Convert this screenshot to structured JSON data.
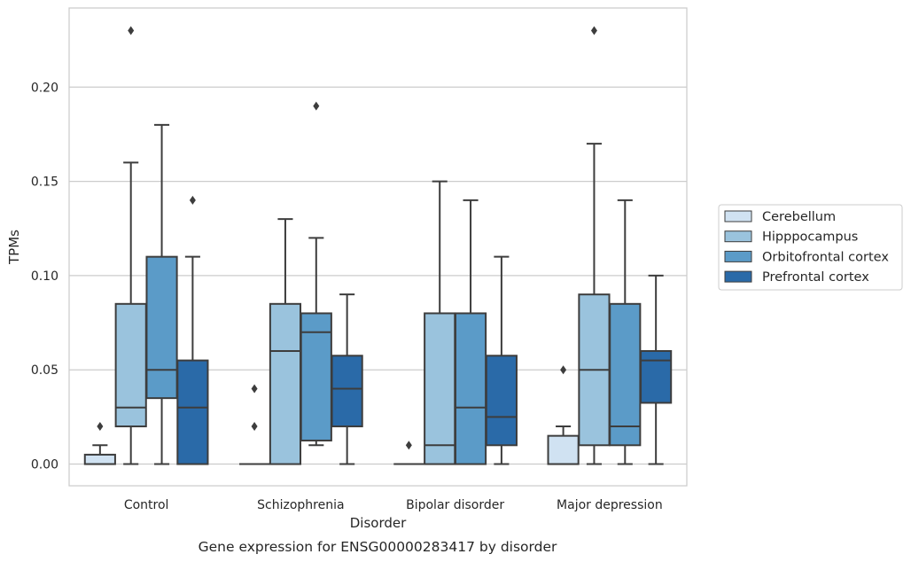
{
  "chart_data": {
    "type": "box",
    "caption": "Gene expression for ENSG00000283417 by disorder",
    "xlabel": "Disorder",
    "ylabel": "TPMs",
    "ylim": [
      -0.0115,
      0.242
    ],
    "yticks": [
      0.0,
      0.05,
      0.1,
      0.15,
      0.2
    ],
    "ytick_labels": [
      "0.00",
      "0.05",
      "0.10",
      "0.15",
      "0.20"
    ],
    "grid": "horizontal",
    "legend_position": "right",
    "categories": [
      "Control",
      "Schizophrenia",
      "Bipolar disorder",
      "Major depression"
    ],
    "series": [
      {
        "name": "Cerebellum",
        "color": "#d0e2f2",
        "boxes": [
          {
            "whislo": 0.0,
            "q1": 0.0,
            "med": 0.0,
            "q3": 0.005,
            "whishi": 0.01,
            "fliers": [
              0.02
            ]
          },
          {
            "whislo": 0.0,
            "q1": 0.0,
            "med": 0.0,
            "q3": 0.0,
            "whishi": 0.0,
            "fliers": [
              0.02,
              0.04
            ]
          },
          {
            "whislo": 0.0,
            "q1": 0.0,
            "med": 0.0,
            "q3": 0.0,
            "whishi": 0.0,
            "fliers": [
              0.01
            ]
          },
          {
            "whislo": 0.0,
            "q1": 0.0,
            "med": 0.0,
            "q3": 0.015,
            "whishi": 0.02,
            "fliers": [
              0.05
            ]
          }
        ]
      },
      {
        "name": "Hipppocampus",
        "color": "#9ac3dd",
        "boxes": [
          {
            "whislo": 0.0,
            "q1": 0.02,
            "med": 0.03,
            "q3": 0.085,
            "whishi": 0.16,
            "fliers": [
              0.23
            ]
          },
          {
            "whislo": 0.0,
            "q1": 0.0,
            "med": 0.06,
            "q3": 0.085,
            "whishi": 0.13,
            "fliers": []
          },
          {
            "whislo": 0.0,
            "q1": 0.0,
            "med": 0.01,
            "q3": 0.08,
            "whishi": 0.15,
            "fliers": []
          },
          {
            "whislo": 0.0,
            "q1": 0.01,
            "med": 0.05,
            "q3": 0.09,
            "whishi": 0.17,
            "fliers": [
              0.23
            ]
          }
        ]
      },
      {
        "name": "Orbitofrontal cortex",
        "color": "#5b9bc8",
        "boxes": [
          {
            "whislo": 0.0,
            "q1": 0.035,
            "med": 0.05,
            "q3": 0.11,
            "whishi": 0.18,
            "fliers": []
          },
          {
            "whislo": 0.01,
            "q1": 0.0125,
            "med": 0.07,
            "q3": 0.08,
            "whishi": 0.12,
            "fliers": [
              0.19
            ]
          },
          {
            "whislo": 0.0,
            "q1": 0.0,
            "med": 0.03,
            "q3": 0.08,
            "whishi": 0.14,
            "fliers": []
          },
          {
            "whislo": 0.0,
            "q1": 0.01,
            "med": 0.02,
            "q3": 0.085,
            "whishi": 0.14,
            "fliers": []
          }
        ]
      },
      {
        "name": "Prefrontal cortex",
        "color": "#2a6aa8",
        "boxes": [
          {
            "whislo": 0.0,
            "q1": 0.0,
            "med": 0.03,
            "q3": 0.055,
            "whishi": 0.11,
            "fliers": [
              0.14
            ]
          },
          {
            "whislo": 0.0,
            "q1": 0.02,
            "med": 0.04,
            "q3": 0.0575,
            "whishi": 0.09,
            "fliers": []
          },
          {
            "whislo": 0.0,
            "q1": 0.01,
            "med": 0.025,
            "q3": 0.0575,
            "whishi": 0.11,
            "fliers": []
          },
          {
            "whislo": 0.0,
            "q1": 0.0325,
            "med": 0.055,
            "q3": 0.06,
            "whishi": 0.1,
            "fliers": []
          }
        ]
      }
    ]
  }
}
